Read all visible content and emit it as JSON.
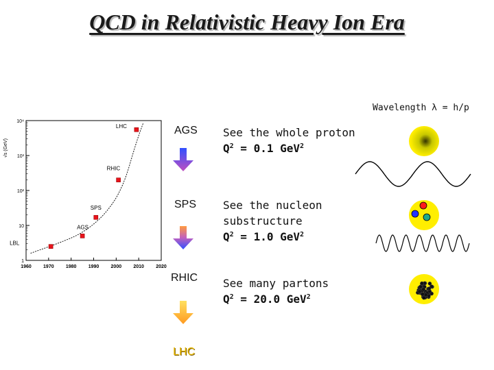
{
  "slide": {
    "title": "QCD in Relativistic Heavy Ion Era",
    "wavelength_label": "Wavelength λ = h/p"
  },
  "chart_data": {
    "type": "scatter",
    "title": "",
    "xlabel": "",
    "ylabel": "√s (GeV)",
    "y_scale": "log",
    "xlim": [
      1960,
      2020
    ],
    "ylim": [
      1,
      10000
    ],
    "x_ticks": [
      "1960",
      "1970",
      "1980",
      "1990",
      "2000",
      "2010",
      "2020"
    ],
    "y_ticks": [
      "1",
      "10",
      "10²",
      "10³",
      "10⁴"
    ],
    "points": [
      {
        "label": "LBL",
        "x": 1971,
        "y": 2.5
      },
      {
        "label": "AGS",
        "x": 1985,
        "y": 5
      },
      {
        "label": "SPS",
        "x": 1991,
        "y": 17
      },
      {
        "label": "RHIC",
        "x": 2001,
        "y": 200
      },
      {
        "label": "LHC",
        "x": 2009,
        "y": 5500
      }
    ],
    "curve": {
      "x": [
        1962,
        1975,
        1985,
        1995,
        2003,
        2009,
        2012
      ],
      "y": [
        1.6,
        3.2,
        6,
        20,
        120,
        2500,
        8500
      ]
    },
    "marker_color": "#e8141c"
  },
  "rows": [
    {
      "accelerator": "AGS",
      "line1": "See the whole proton",
      "q_prefix": "Q",
      "q_exp": "2",
      "q_value": " = 0.1 GeV",
      "q_unit_exp": "2"
    },
    {
      "accelerator": "SPS",
      "line1": "See the nucleon",
      "line2": "substructure",
      "q_prefix": "Q",
      "q_exp": "2",
      "q_value": " = 1.0 GeV",
      "q_unit_exp": "2"
    },
    {
      "accelerator": "RHIC",
      "line1": "See many partons",
      "q_prefix": "Q",
      "q_exp": "2",
      "q_value": " = 20.0 GeV",
      "q_unit_exp": "2"
    },
    {
      "accelerator": "LHC"
    }
  ],
  "colors": {
    "arrow_blue": "#3050ff",
    "arrow_purple": "#c050c0",
    "arrow_orange": "#ff9a20",
    "arrow_yellow": "#ffe060",
    "proton_yellow": "#ffee00",
    "quark_red": "#ff1a1a",
    "quark_blue": "#2233ff",
    "quark_green": "#22aa88"
  }
}
